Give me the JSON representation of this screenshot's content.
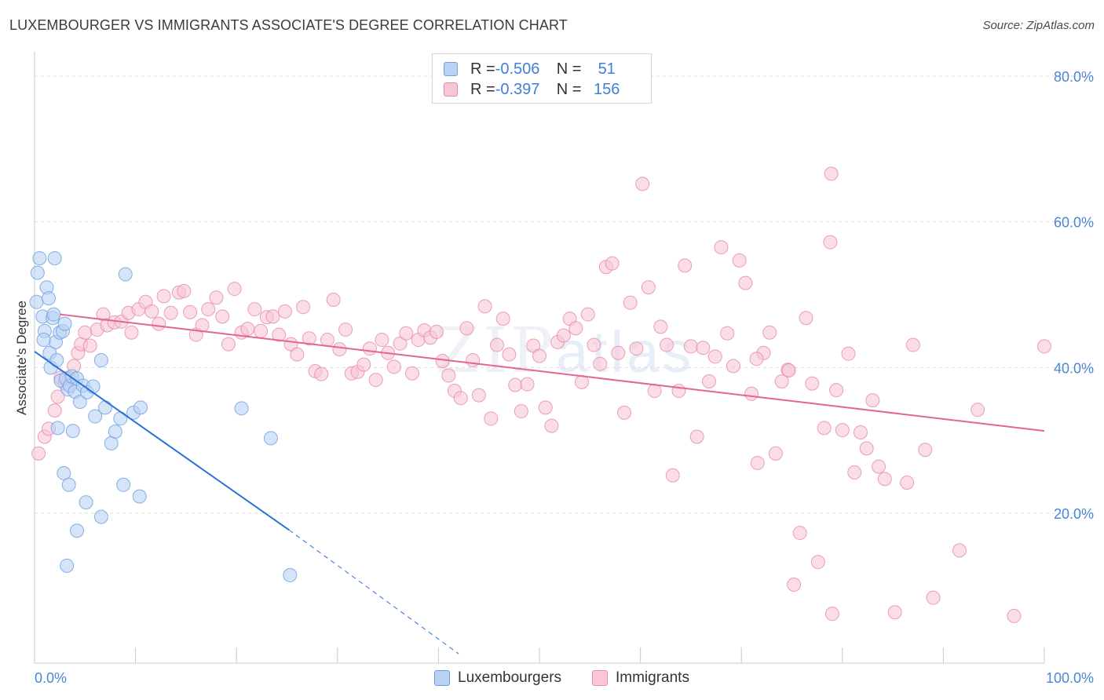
{
  "title": "LUXEMBOURGER VS IMMIGRANTS ASSOCIATE'S DEGREE CORRELATION CHART",
  "source": "Source: ZipAtlas.com",
  "colors": {
    "lux_fill": "#b9d2f3",
    "lux_stroke": "#6b9fe0",
    "lux_line": "#2a72d8",
    "imm_fill": "#f8c6d6",
    "imm_stroke": "#e68aa8",
    "imm_line": "#e2668f",
    "tick_label": "#4a86d6",
    "grid": "#dcdcdc"
  },
  "watermark": {
    "zip": "ZIP",
    "atlas": "atlas"
  },
  "legend_top": [
    {
      "r_label": "R = ",
      "r_value": "-0.506",
      "n_label": "N = ",
      "n_value": "51"
    },
    {
      "r_label": "R = ",
      "r_value": "-0.397",
      "n_label": "N = ",
      "n_value": "156"
    }
  ],
  "chart_data": {
    "type": "scatter",
    "title": "LUXEMBOURGER VS IMMIGRANTS ASSOCIATE'S DEGREE CORRELATION CHART",
    "xlabel": "",
    "ylabel": "Associate's Degree",
    "xlim": [
      0,
      100
    ],
    "ylim": [
      0,
      80
    ],
    "x_tick_labels": [
      "0.0%",
      "100.0%"
    ],
    "y_ticks": [
      20,
      40,
      60,
      80
    ],
    "y_tick_labels": [
      "20.0%",
      "40.0%",
      "60.0%",
      "80.0%"
    ],
    "grid": true,
    "legend_placement": "top-center",
    "series": [
      {
        "name": "Luxembourgers",
        "r": -0.506,
        "n": 51,
        "trend": {
          "x": [
            0,
            25.2
          ],
          "y": [
            42.2,
            17.7
          ],
          "dashed_to": {
            "x": 42.0,
            "y": 0.7
          }
        },
        "points": [
          [
            0.2,
            49
          ],
          [
            0.3,
            53
          ],
          [
            0.5,
            55
          ],
          [
            0.8,
            47
          ],
          [
            1.0,
            45
          ],
          [
            1.2,
            51
          ],
          [
            1.5,
            42
          ],
          [
            1.6,
            40
          ],
          [
            1.8,
            46.8
          ],
          [
            2.0,
            55
          ],
          [
            2.1,
            43.5
          ],
          [
            2.2,
            41
          ],
          [
            2.5,
            44.8
          ],
          [
            2.6,
            38.2
          ],
          [
            2.8,
            45
          ],
          [
            3.0,
            46
          ],
          [
            3.1,
            38.5
          ],
          [
            3.3,
            37
          ],
          [
            3.5,
            37.5
          ],
          [
            3.7,
            38.8
          ],
          [
            4.0,
            36.7
          ],
          [
            4.2,
            38.5
          ],
          [
            4.5,
            35.3
          ],
          [
            4.8,
            37.5
          ],
          [
            5.2,
            36.6
          ],
          [
            5.8,
            37.4
          ],
          [
            6.0,
            33.3
          ],
          [
            6.6,
            41
          ],
          [
            7.0,
            34.5
          ],
          [
            7.6,
            29.6
          ],
          [
            8.0,
            31.2
          ],
          [
            8.5,
            33
          ],
          [
            9.0,
            52.8
          ],
          [
            9.8,
            33.8
          ],
          [
            10.5,
            34.5
          ],
          [
            2.3,
            31.7
          ],
          [
            3.8,
            31.3
          ],
          [
            2.9,
            25.5
          ],
          [
            3.4,
            23.9
          ],
          [
            5.1,
            21.5
          ],
          [
            6.6,
            19.5
          ],
          [
            8.8,
            23.9
          ],
          [
            10.4,
            22.3
          ],
          [
            4.2,
            17.6
          ],
          [
            3.2,
            12.8
          ],
          [
            20.5,
            34.4
          ],
          [
            23.4,
            30.3
          ],
          [
            25.3,
            11.5
          ],
          [
            1.4,
            49.5
          ],
          [
            0.9,
            43.8
          ],
          [
            1.9,
            47.3
          ]
        ]
      },
      {
        "name": "Immigrants",
        "r": -0.397,
        "n": 156,
        "trend": {
          "x": [
            2.5,
            100
          ],
          "y": [
            47.3,
            31.3
          ]
        },
        "points": [
          [
            0.4,
            28.2
          ],
          [
            1.0,
            30.5
          ],
          [
            1.4,
            31.6
          ],
          [
            2.0,
            34.1
          ],
          [
            2.3,
            36
          ],
          [
            2.6,
            38.6
          ],
          [
            3.0,
            37.8
          ],
          [
            3.4,
            38.6
          ],
          [
            3.9,
            40.2
          ],
          [
            4.3,
            42
          ],
          [
            4.6,
            43.2
          ],
          [
            5.0,
            44.8
          ],
          [
            5.5,
            43
          ],
          [
            6.2,
            45.2
          ],
          [
            6.8,
            47.3
          ],
          [
            7.2,
            45.8
          ],
          [
            7.9,
            46.2
          ],
          [
            8.6,
            46.3
          ],
          [
            9.3,
            47.5
          ],
          [
            9.6,
            44.8
          ],
          [
            10.3,
            48
          ],
          [
            11.0,
            49
          ],
          [
            11.6,
            47.7
          ],
          [
            12.3,
            46
          ],
          [
            12.8,
            49.8
          ],
          [
            13.5,
            47.5
          ],
          [
            14.3,
            50.3
          ],
          [
            14.8,
            50.5
          ],
          [
            15.4,
            47.6
          ],
          [
            16.0,
            44.5
          ],
          [
            16.6,
            45.8
          ],
          [
            17.2,
            48
          ],
          [
            18.0,
            49.6
          ],
          [
            18.6,
            47
          ],
          [
            19.2,
            43.2
          ],
          [
            19.8,
            50.8
          ],
          [
            20.5,
            44.8
          ],
          [
            21.1,
            45.3
          ],
          [
            21.8,
            48
          ],
          [
            22.4,
            45
          ],
          [
            23.0,
            46.9
          ],
          [
            23.6,
            47
          ],
          [
            24.2,
            44.5
          ],
          [
            24.8,
            47.7
          ],
          [
            25.4,
            43.2
          ],
          [
            26.0,
            41.8
          ],
          [
            26.6,
            48.3
          ],
          [
            27.2,
            44
          ],
          [
            27.8,
            39.5
          ],
          [
            28.4,
            39.1
          ],
          [
            29.0,
            43.8
          ],
          [
            29.6,
            49.3
          ],
          [
            30.2,
            42.5
          ],
          [
            30.8,
            45.2
          ],
          [
            31.4,
            39.2
          ],
          [
            32.0,
            39.4
          ],
          [
            32.6,
            40.4
          ],
          [
            33.2,
            42.6
          ],
          [
            33.8,
            38.3
          ],
          [
            34.4,
            43.8
          ],
          [
            35.0,
            42
          ],
          [
            35.6,
            40.1
          ],
          [
            36.2,
            43.3
          ],
          [
            36.8,
            44.7
          ],
          [
            37.4,
            39.2
          ],
          [
            38.0,
            43.8
          ],
          [
            38.6,
            45.1
          ],
          [
            39.2,
            44.1
          ],
          [
            39.8,
            44.9
          ],
          [
            40.4,
            40.9
          ],
          [
            41.0,
            38.9
          ],
          [
            41.6,
            36.8
          ],
          [
            42.2,
            35.8
          ],
          [
            42.8,
            45.4
          ],
          [
            43.4,
            41
          ],
          [
            44.0,
            36.2
          ],
          [
            44.6,
            48.4
          ],
          [
            45.2,
            33
          ],
          [
            45.8,
            43.1
          ],
          [
            46.4,
            46.7
          ],
          [
            47.0,
            41.8
          ],
          [
            47.6,
            37.6
          ],
          [
            48.2,
            34
          ],
          [
            48.8,
            37.7
          ],
          [
            49.4,
            43
          ],
          [
            50.0,
            41.6
          ],
          [
            50.6,
            34.5
          ],
          [
            51.2,
            32
          ],
          [
            51.8,
            43.5
          ],
          [
            52.4,
            44.4
          ],
          [
            53.0,
            46.7
          ],
          [
            53.6,
            45.4
          ],
          [
            54.2,
            38
          ],
          [
            54.8,
            47.3
          ],
          [
            55.4,
            43.1
          ],
          [
            56.0,
            40.5
          ],
          [
            56.6,
            53.8
          ],
          [
            57.2,
            54.3
          ],
          [
            57.8,
            42
          ],
          [
            58.4,
            33.8
          ],
          [
            59.0,
            48.9
          ],
          [
            59.6,
            42.6
          ],
          [
            60.2,
            65.2
          ],
          [
            60.8,
            51
          ],
          [
            61.4,
            36.8
          ],
          [
            62.0,
            45.6
          ],
          [
            62.6,
            43.1
          ],
          [
            63.2,
            25.2
          ],
          [
            63.8,
            36.8
          ],
          [
            64.4,
            54
          ],
          [
            65.0,
            42.9
          ],
          [
            65.6,
            30.5
          ],
          [
            66.2,
            42.7
          ],
          [
            66.8,
            38.1
          ],
          [
            67.4,
            41.5
          ],
          [
            68.0,
            56.5
          ],
          [
            68.6,
            44.7
          ],
          [
            69.2,
            40.2
          ],
          [
            69.8,
            54.7
          ],
          [
            70.4,
            51.6
          ],
          [
            71.0,
            36.4
          ],
          [
            71.6,
            26.9
          ],
          [
            72.2,
            42
          ],
          [
            72.8,
            44.8
          ],
          [
            73.4,
            28.2
          ],
          [
            74.0,
            38.1
          ],
          [
            74.6,
            39.7
          ],
          [
            75.2,
            10.2
          ],
          [
            75.8,
            17.3
          ],
          [
            76.4,
            46.8
          ],
          [
            77.0,
            37.8
          ],
          [
            77.6,
            13.3
          ],
          [
            78.2,
            31.7
          ],
          [
            78.8,
            57.2
          ],
          [
            79.4,
            36.9
          ],
          [
            80.0,
            31.4
          ],
          [
            80.6,
            41.9
          ],
          [
            81.2,
            25.6
          ],
          [
            81.8,
            31.1
          ],
          [
            82.4,
            28.9
          ],
          [
            83.0,
            35.5
          ],
          [
            83.6,
            26.4
          ],
          [
            84.2,
            24.7
          ],
          [
            85.2,
            6.4
          ],
          [
            86.4,
            24.2
          ],
          [
            79.0,
            6.2
          ],
          [
            78.9,
            66.6
          ],
          [
            88.2,
            28.7
          ],
          [
            89.0,
            8.4
          ],
          [
            91.6,
            14.9
          ],
          [
            93.4,
            34.2
          ],
          [
            97.0,
            5.9
          ],
          [
            100.0,
            42.9
          ],
          [
            87.0,
            43.1
          ],
          [
            71.5,
            41.2
          ],
          [
            74.7,
            39.6
          ]
        ]
      }
    ]
  }
}
